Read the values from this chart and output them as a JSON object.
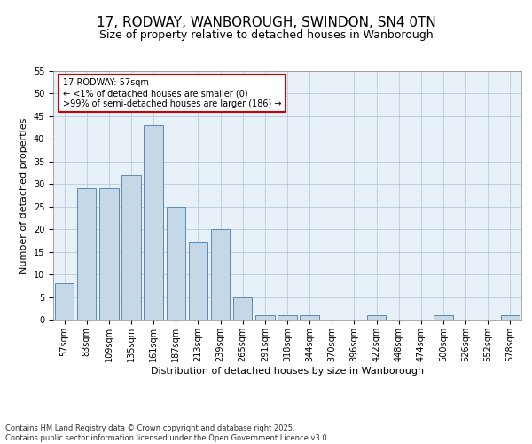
{
  "title": "17, RODWAY, WANBOROUGH, SWINDON, SN4 0TN",
  "subtitle": "Size of property relative to detached houses in Wanborough",
  "xlabel": "Distribution of detached houses by size in Wanborough",
  "ylabel": "Number of detached properties",
  "categories": [
    "57sqm",
    "83sqm",
    "109sqm",
    "135sqm",
    "161sqm",
    "187sqm",
    "213sqm",
    "239sqm",
    "265sqm",
    "291sqm",
    "318sqm",
    "344sqm",
    "370sqm",
    "396sqm",
    "422sqm",
    "448sqm",
    "474sqm",
    "500sqm",
    "526sqm",
    "552sqm",
    "578sqm"
  ],
  "values": [
    8,
    29,
    29,
    32,
    43,
    25,
    17,
    20,
    5,
    1,
    1,
    1,
    0,
    0,
    1,
    0,
    0,
    1,
    0,
    0,
    1
  ],
  "bar_color": "#c5d8e8",
  "bar_edge_color": "#5a8ab5",
  "ylim": [
    0,
    55
  ],
  "yticks": [
    0,
    5,
    10,
    15,
    20,
    25,
    30,
    35,
    40,
    45,
    50,
    55
  ],
  "annotation_title": "17 RODWAY: 57sqm",
  "annotation_line1": "← <1% of detached houses are smaller (0)",
  "annotation_line2": ">99% of semi-detached houses are larger (186) →",
  "annotation_box_color": "#ffffff",
  "annotation_border_color": "#cc0000",
  "bg_color": "#e8f0f8",
  "footer_line1": "Contains HM Land Registry data © Crown copyright and database right 2025.",
  "footer_line2": "Contains public sector information licensed under the Open Government Licence v3.0.",
  "title_fontsize": 11,
  "subtitle_fontsize": 9,
  "axis_label_fontsize": 8,
  "tick_fontsize": 7,
  "annotation_fontsize": 7,
  "footer_fontsize": 6
}
